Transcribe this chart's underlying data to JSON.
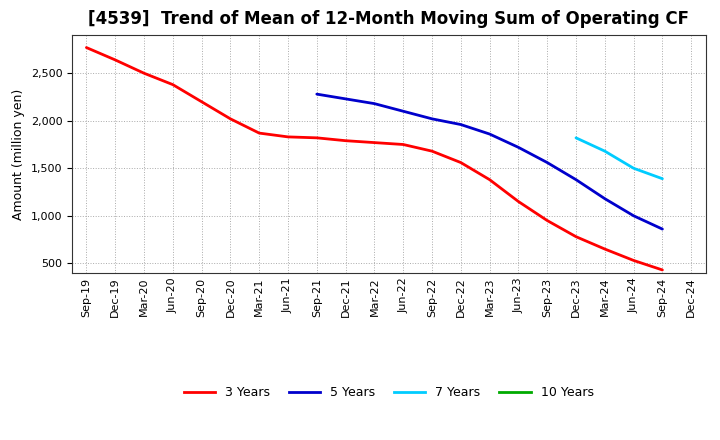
{
  "title": "[4539]  Trend of Mean of 12-Month Moving Sum of Operating CF",
  "ylabel": "Amount (million yen)",
  "background_color": "#ffffff",
  "plot_bg_color": "#ffffff",
  "grid_color": "#aaaaaa",
  "x_labels": [
    "Sep-19",
    "Dec-19",
    "Mar-20",
    "Jun-20",
    "Sep-20",
    "Dec-20",
    "Mar-21",
    "Jun-21",
    "Sep-21",
    "Dec-21",
    "Mar-22",
    "Jun-22",
    "Sep-22",
    "Dec-22",
    "Mar-23",
    "Jun-23",
    "Sep-23",
    "Dec-23",
    "Mar-24",
    "Jun-24",
    "Sep-24",
    "Dec-24"
  ],
  "series": {
    "3 Years": {
      "color": "#ff0000",
      "values": [
        2770,
        2640,
        2500,
        2380,
        2200,
        2020,
        1870,
        1830,
        1820,
        1790,
        1770,
        1750,
        1680,
        1560,
        1380,
        1150,
        950,
        780,
        650,
        530,
        430,
        null
      ]
    },
    "5 Years": {
      "color": "#0000cc",
      "values": [
        null,
        null,
        null,
        null,
        null,
        null,
        null,
        null,
        2280,
        2230,
        2180,
        2100,
        2020,
        1960,
        1860,
        1720,
        1560,
        1380,
        1180,
        1000,
        860,
        null
      ]
    },
    "7 Years": {
      "color": "#00ccff",
      "values": [
        null,
        null,
        null,
        null,
        null,
        null,
        null,
        null,
        null,
        null,
        null,
        null,
        null,
        null,
        null,
        null,
        null,
        1820,
        1680,
        1500,
        1390,
        null
      ]
    },
    "10 Years": {
      "color": "#00aa00",
      "values": [
        null,
        null,
        null,
        null,
        null,
        null,
        null,
        null,
        null,
        null,
        null,
        null,
        null,
        null,
        null,
        null,
        null,
        null,
        null,
        null,
        null,
        null
      ]
    }
  },
  "ylim": [
    400,
    2900
  ],
  "yticks": [
    500,
    1000,
    1500,
    2000,
    2500
  ],
  "title_fontsize": 12,
  "axis_fontsize": 9,
  "tick_fontsize": 8,
  "legend_fontsize": 9,
  "linewidth": 2.0
}
